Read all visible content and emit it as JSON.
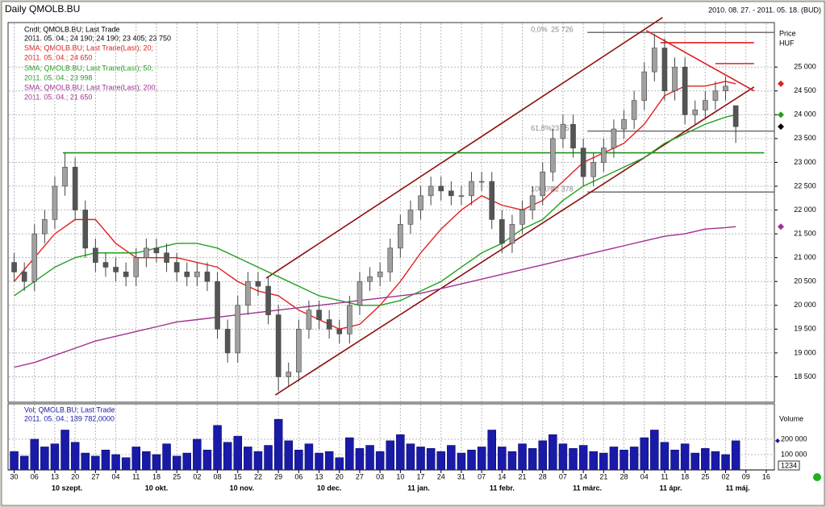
{
  "header": {
    "title": "Daily QMOLB.BU",
    "range": "2010. 08. 27. - 2011. 05. 18. (BUD)"
  },
  "chart_data": {
    "type": "candlestick",
    "name": "Cndl; QMOLB.BU; Last Trade",
    "last_label": "2011. 05. 04.; 24 190; 24 190; 23 405; 23 750",
    "x": [
      0,
      0.5,
      1,
      1.5,
      2,
      2.5,
      3,
      3.5,
      4,
      4.5,
      5,
      5.5,
      6,
      6.5,
      7,
      7.5,
      8,
      8.5,
      9,
      9.5,
      10,
      10.5,
      11,
      11.5,
      12,
      12.5,
      13,
      13.5,
      14,
      14.5,
      15,
      15.5,
      16,
      16.5,
      17,
      17.5,
      18,
      18.5,
      19,
      19.5,
      20,
      20.5,
      21,
      21.5,
      22,
      22.5,
      23,
      23.5,
      24,
      24.5,
      25,
      25.5,
      26,
      26.5,
      27,
      27.5,
      28,
      28.5,
      29,
      29.5,
      30,
      30.5,
      31,
      31.5,
      32,
      32.5,
      33,
      33.5,
      34,
      34.5,
      35,
      35.5
    ],
    "open": [
      20900,
      20700,
      20500,
      21500,
      21800,
      22500,
      22900,
      22000,
      21200,
      20900,
      20800,
      20700,
      20600,
      21000,
      21200,
      21100,
      20900,
      20700,
      20600,
      20700,
      20500,
      19500,
      19000,
      20000,
      20500,
      20400,
      19800,
      18500,
      18600,
      19500,
      19900,
      19700,
      19500,
      19400,
      20000,
      20500,
      20600,
      20700,
      21200,
      21700,
      22000,
      22300,
      22500,
      22400,
      22300,
      22300,
      22600,
      22600,
      21800,
      21300,
      21700,
      22000,
      22300,
      22800,
      23500,
      23800,
      23300,
      22700,
      23000,
      23300,
      23700,
      23900,
      24300,
      24900,
      25400,
      24500,
      25000,
      24000,
      24100,
      24300,
      24500,
      24190
    ],
    "high": [
      21100,
      20900,
      21700,
      22000,
      22700,
      23200,
      23100,
      22200,
      21400,
      21100,
      21000,
      20900,
      21200,
      21400,
      21400,
      21300,
      21100,
      20900,
      20900,
      20900,
      20700,
      19700,
      20200,
      20700,
      20700,
      20600,
      20000,
      18800,
      19700,
      20100,
      20100,
      19900,
      19700,
      20200,
      20700,
      20800,
      20900,
      21400,
      21900,
      22200,
      22500,
      22700,
      22700,
      22600,
      22500,
      22800,
      22800,
      22800,
      22000,
      21900,
      22200,
      22500,
      23000,
      23700,
      24000,
      24000,
      23500,
      23200,
      23500,
      23900,
      24100,
      24500,
      25100,
      25700,
      25600,
      25200,
      25200,
      24300,
      24500,
      24700,
      24800,
      24190
    ],
    "low": [
      20500,
      20300,
      20300,
      21300,
      21600,
      22300,
      21800,
      21000,
      20700,
      20600,
      20500,
      20400,
      20400,
      20800,
      20900,
      20700,
      20500,
      20400,
      20400,
      20300,
      19300,
      18800,
      18800,
      19800,
      20200,
      19600,
      18200,
      18300,
      18400,
      19300,
      19500,
      19300,
      19200,
      19200,
      19800,
      20300,
      20400,
      20500,
      21000,
      21500,
      21800,
      22100,
      22200,
      22100,
      22100,
      22100,
      22400,
      21600,
      21100,
      21100,
      21500,
      21800,
      22100,
      22600,
      23300,
      23100,
      22500,
      22500,
      22800,
      23100,
      23500,
      23700,
      24100,
      24700,
      24300,
      24300,
      23800,
      23800,
      23900,
      24100,
      24300,
      23405
    ],
    "close": [
      20700,
      20500,
      21500,
      21800,
      22500,
      22900,
      22000,
      21200,
      20900,
      20800,
      20700,
      20600,
      21000,
      21200,
      21100,
      20900,
      20700,
      20600,
      20700,
      20500,
      19500,
      19000,
      20000,
      20500,
      20400,
      19800,
      18500,
      18600,
      19500,
      19900,
      19700,
      19500,
      19400,
      20000,
      20500,
      20600,
      20700,
      21200,
      21700,
      22000,
      22300,
      22500,
      22400,
      22300,
      22300,
      22600,
      22600,
      21800,
      21300,
      21700,
      22000,
      22300,
      22800,
      23500,
      23800,
      23300,
      22700,
      23000,
      23300,
      23700,
      23900,
      24300,
      24900,
      25400,
      24500,
      25000,
      24000,
      24100,
      24300,
      24500,
      24600,
      23750
    ],
    "series": [
      {
        "name": "SMA; QMOLB.BU; Last Trade(Last); 20;",
        "last_label": "2011. 05. 04.; 24 650",
        "color": "#e02020",
        "x": [
          0,
          1,
          2,
          3,
          4,
          5,
          6,
          7,
          8,
          9,
          10,
          11,
          12,
          13,
          14,
          15,
          16,
          17,
          18,
          19,
          20,
          21,
          22,
          23,
          24,
          25,
          26,
          27,
          28,
          29,
          30,
          31,
          32,
          33,
          34,
          35,
          35.5
        ],
        "values": [
          20500,
          21000,
          21500,
          21800,
          21800,
          21300,
          21000,
          21000,
          21000,
          20900,
          20800,
          20500,
          20300,
          20200,
          19900,
          19700,
          19500,
          19600,
          20000,
          20500,
          21100,
          21600,
          22000,
          22300,
          22100,
          22000,
          22200,
          22600,
          23000,
          23200,
          23400,
          23800,
          24400,
          24600,
          24600,
          24700,
          24650
        ]
      },
      {
        "name": "SMA; QMOLB.BU; Last Trade(Last); 50;",
        "last_label": "2011. 05. 04.; 23 998",
        "color": "#22a020",
        "x": [
          0,
          1,
          2,
          3,
          4,
          5,
          6,
          7,
          8,
          9,
          10,
          11,
          12,
          13,
          14,
          15,
          16,
          17,
          18,
          19,
          20,
          21,
          22,
          23,
          24,
          25,
          26,
          27,
          28,
          29,
          30,
          31,
          32,
          33,
          34,
          35,
          35.5
        ],
        "values": [
          20200,
          20500,
          20800,
          21000,
          21100,
          21100,
          21100,
          21200,
          21300,
          21300,
          21200,
          21000,
          20800,
          20600,
          20400,
          20200,
          20100,
          20000,
          20000,
          20100,
          20300,
          20500,
          20800,
          21100,
          21300,
          21600,
          21800,
          22200,
          22500,
          22700,
          22900,
          23100,
          23400,
          23600,
          23800,
          23950,
          23998
        ]
      },
      {
        "name": "SMA; QMOLB.BU; Last Trade(Last); 200;",
        "last_label": "2011. 05. 04.; 21 650",
        "color": "#a03090",
        "x": [
          0,
          1,
          2,
          3,
          4,
          5,
          6,
          7,
          8,
          9,
          10,
          11,
          12,
          13,
          14,
          15,
          16,
          17,
          18,
          19,
          20,
          21,
          22,
          23,
          24,
          25,
          26,
          27,
          28,
          29,
          30,
          31,
          32,
          33,
          34,
          35,
          35.5
        ],
        "values": [
          18700,
          18800,
          18950,
          19100,
          19250,
          19350,
          19450,
          19550,
          19650,
          19700,
          19750,
          19800,
          19850,
          19900,
          19950,
          20000,
          20050,
          20100,
          20150,
          20200,
          20250,
          20350,
          20450,
          20550,
          20650,
          20750,
          20850,
          20950,
          21050,
          21150,
          21250,
          21350,
          21450,
          21500,
          21600,
          21630,
          21650
        ]
      }
    ],
    "ylim": [
      18000,
      25900
    ],
    "yticks": [
      {
        "value": 18500,
        "label": "18 500"
      },
      {
        "value": 19000,
        "label": "19 000"
      },
      {
        "value": 19500,
        "label": "19 500"
      },
      {
        "value": 20000,
        "label": "20 000"
      },
      {
        "value": 20500,
        "label": "20 500"
      },
      {
        "value": 21000,
        "label": "21 000"
      },
      {
        "value": 21500,
        "label": "21 500"
      },
      {
        "value": 22000,
        "label": "22 000"
      },
      {
        "value": 22500,
        "label": "22 500"
      },
      {
        "value": 23000,
        "label": "23 000"
      },
      {
        "value": 23500,
        "label": "23 500"
      },
      {
        "value": 24000,
        "label": "24 000"
      },
      {
        "value": 24500,
        "label": "24 500"
      },
      {
        "value": 25000,
        "label": "25 000"
      }
    ],
    "y_label": "Price",
    "y_unit": "HUF",
    "xlim": [
      -0.3,
      37.4
    ],
    "xticks": [
      {
        "value": 0,
        "label": "30"
      },
      {
        "value": 1,
        "label": "06"
      },
      {
        "value": 2,
        "label": "13"
      },
      {
        "value": 3,
        "label": "20"
      },
      {
        "value": 4,
        "label": "27"
      },
      {
        "value": 5,
        "label": "04"
      },
      {
        "value": 6,
        "label": "11"
      },
      {
        "value": 7,
        "label": "18"
      },
      {
        "value": 8,
        "label": "25"
      },
      {
        "value": 9,
        "label": "02"
      },
      {
        "value": 10,
        "label": "08"
      },
      {
        "value": 11,
        "label": "15"
      },
      {
        "value": 12,
        "label": "22"
      },
      {
        "value": 13,
        "label": "29"
      },
      {
        "value": 14,
        "label": "06"
      },
      {
        "value": 15,
        "label": "13"
      },
      {
        "value": 16,
        "label": "20"
      },
      {
        "value": 17,
        "label": "27"
      },
      {
        "value": 18,
        "label": "03"
      },
      {
        "value": 19,
        "label": "10"
      },
      {
        "value": 20,
        "label": "17"
      },
      {
        "value": 21,
        "label": "24"
      },
      {
        "value": 22,
        "label": "31"
      },
      {
        "value": 23,
        "label": "07"
      },
      {
        "value": 24,
        "label": "14"
      },
      {
        "value": 25,
        "label": "21"
      },
      {
        "value": 26,
        "label": "28"
      },
      {
        "value": 27,
        "label": "07"
      },
      {
        "value": 28,
        "label": "14"
      },
      {
        "value": 29,
        "label": "21"
      },
      {
        "value": 30,
        "label": "28"
      },
      {
        "value": 31,
        "label": "04"
      },
      {
        "value": 32,
        "label": "11"
      },
      {
        "value": 33,
        "label": "18"
      },
      {
        "value": 34,
        "label": "25"
      },
      {
        "value": 35,
        "label": "02"
      },
      {
        "value": 36,
        "label": "09"
      },
      {
        "value": 37,
        "label": "16"
      }
    ],
    "month_ticks": [
      {
        "value": 2.6,
        "label": "10 szept."
      },
      {
        "value": 7.0,
        "label": "10 okt."
      },
      {
        "value": 11.2,
        "label": "10 nov."
      },
      {
        "value": 15.5,
        "label": "10 dec."
      },
      {
        "value": 19.9,
        "label": "11 jan."
      },
      {
        "value": 24.0,
        "label": "11 febr."
      },
      {
        "value": 28.2,
        "label": "11 márc."
      },
      {
        "value": 32.3,
        "label": "11 ápr."
      },
      {
        "value": 35.6,
        "label": "11 máj."
      }
    ],
    "grid": true,
    "fib_levels": [
      {
        "level": "0,0%",
        "value": 25726,
        "label": "25 726"
      },
      {
        "level": "61,8%",
        "value": 23657,
        "label": "23 657"
      },
      {
        "level": "100,0%",
        "value": 22378,
        "label": "22 378"
      }
    ],
    "fib_x": [
      28.2,
      37.4
    ],
    "trendlines": [
      {
        "x": [
          12.4,
          31.9
        ],
        "y": [
          20570,
          26040
        ],
        "color": "#8b1010"
      },
      {
        "x": [
          12.85,
          36.4
        ],
        "y": [
          18118,
          24582
        ],
        "color": "#8b1010"
      },
      {
        "x": [
          31.1,
          36.4
        ],
        "y": [
          25766,
          24500
        ],
        "color": "#e02020"
      },
      {
        "x": [
          31.8,
          36.4
        ],
        "y": [
          25512,
          25512
        ],
        "color": "#e02020"
      },
      {
        "x": [
          34.5,
          36.4
        ],
        "y": [
          25073,
          25073
        ],
        "color": "#e02020"
      },
      {
        "x": [
          2.4,
          36.9
        ],
        "y": [
          23200,
          23200
        ],
        "color": "#209020"
      }
    ],
    "volume": {
      "name": "Vol; QMOLB.BU; Last Trade",
      "last_label": "2011. 05. 04.; 189 782,0000",
      "label": "Volume",
      "badge": "1234",
      "color": "#1a1aa8",
      "values": [
        120000,
        90000,
        200000,
        150000,
        170000,
        260000,
        180000,
        110000,
        90000,
        130000,
        100000,
        80000,
        150000,
        120000,
        100000,
        170000,
        90000,
        110000,
        200000,
        130000,
        290000,
        180000,
        220000,
        150000,
        120000,
        160000,
        330000,
        190000,
        130000,
        170000,
        110000,
        120000,
        80000,
        210000,
        140000,
        160000,
        120000,
        190000,
        230000,
        170000,
        150000,
        140000,
        120000,
        160000,
        110000,
        130000,
        150000,
        260000,
        150000,
        120000,
        170000,
        140000,
        190000,
        230000,
        170000,
        140000,
        160000,
        120000,
        110000,
        150000,
        130000,
        150000,
        210000,
        260000,
        180000,
        130000,
        170000,
        110000,
        140000,
        120000,
        100000,
        189782
      ],
      "ylim": [
        0,
        420000
      ],
      "yticks": [
        {
          "value": 100000,
          "label": "100 000"
        },
        {
          "value": 200000,
          "label": "200 000"
        }
      ]
    }
  }
}
